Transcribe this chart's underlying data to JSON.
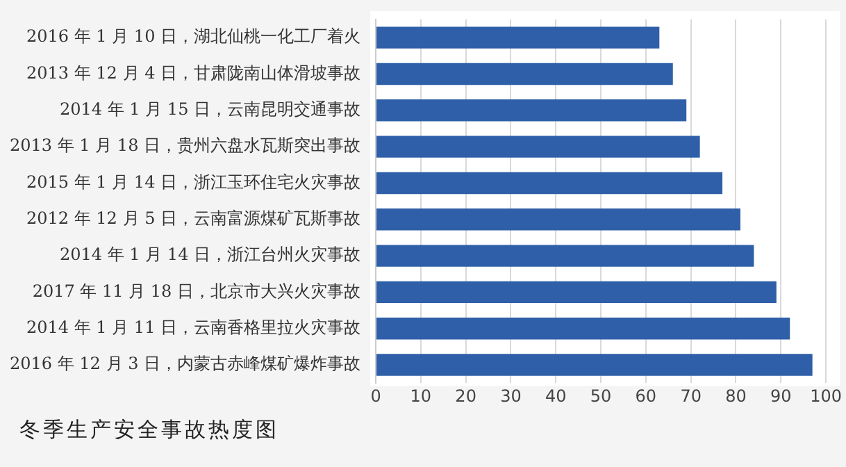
{
  "chart_data": {
    "type": "bar",
    "orientation": "horizontal",
    "title": "冬季生产安全事故热度图",
    "categories": [
      "2016 年 1 月 10 日，湖北仙桃一化工厂着火",
      "2013 年 12 月 4 日，甘肃陇南山体滑坡事故",
      "2014 年 1 月 15 日，云南昆明交通事故",
      "2013 年 1 月 18 日，贵州六盘水瓦斯突出事故",
      "2015 年 1 月 14 日，浙江玉环住宅火灾事故",
      "2012 年 12 月 5 日，云南富源煤矿瓦斯事故",
      "2014 年 1 月 14 日，浙江台州火灾事故",
      "2017 年 11 月 18 日，北京市大兴火灾事故",
      "2014 年 1 月 11 日，云南香格里拉火灾事故",
      "2016 年 12 月 3 日，内蒙古赤峰煤矿爆炸事故"
    ],
    "values": [
      63,
      66,
      69,
      72,
      77,
      81,
      84,
      89,
      92,
      97
    ],
    "color": "#2e5fa8",
    "xlim": [
      0,
      100
    ],
    "xticks": [
      0,
      10,
      20,
      30,
      40,
      50,
      60,
      70,
      80,
      90,
      100
    ],
    "grid": "x",
    "legend": false
  }
}
